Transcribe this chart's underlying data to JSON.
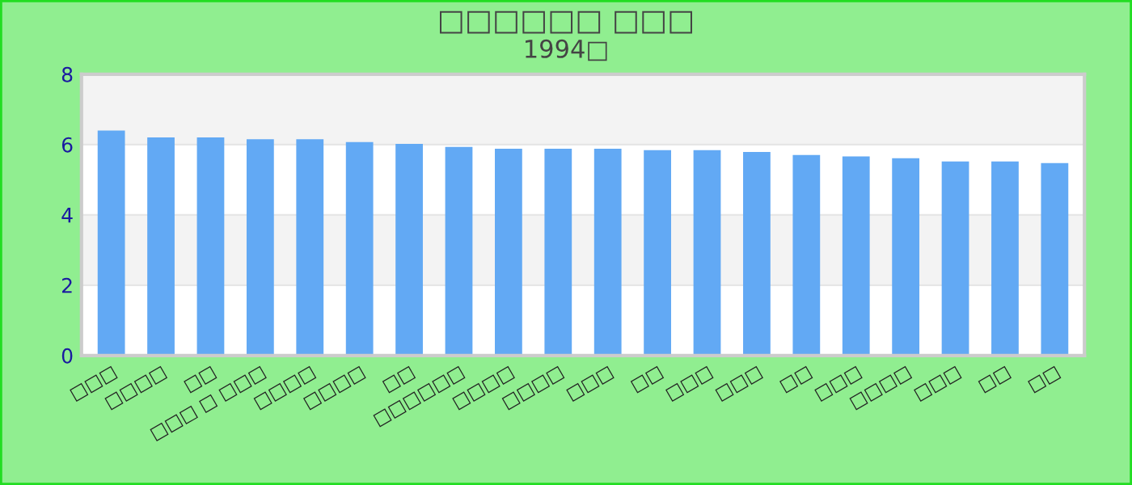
{
  "chart_data": {
    "type": "bar",
    "title": "□□□□□□ □□□",
    "subtitle": "1994□",
    "categories": [
      "□□□",
      "□□□□",
      "□□",
      "□□□ □ □□□",
      "□□□□",
      "□□□□",
      "□□",
      "□□□□□□",
      "□□□□",
      "□□□□",
      "□□□",
      "□□",
      "□□□",
      "□□□",
      "□□",
      "□□□",
      "□□□□",
      "□□□",
      "□□",
      "□□"
    ],
    "values": [
      6.4,
      6.2,
      6.2,
      6.15,
      6.15,
      6.07,
      6.02,
      5.93,
      5.88,
      5.88,
      5.88,
      5.84,
      5.84,
      5.79,
      5.7,
      5.66,
      5.61,
      5.52,
      5.52,
      5.47
    ],
    "color": "#62a9f4",
    "ylim": [
      0,
      8
    ],
    "yticks": [
      0,
      2,
      4,
      6,
      8
    ],
    "grid": "y"
  }
}
